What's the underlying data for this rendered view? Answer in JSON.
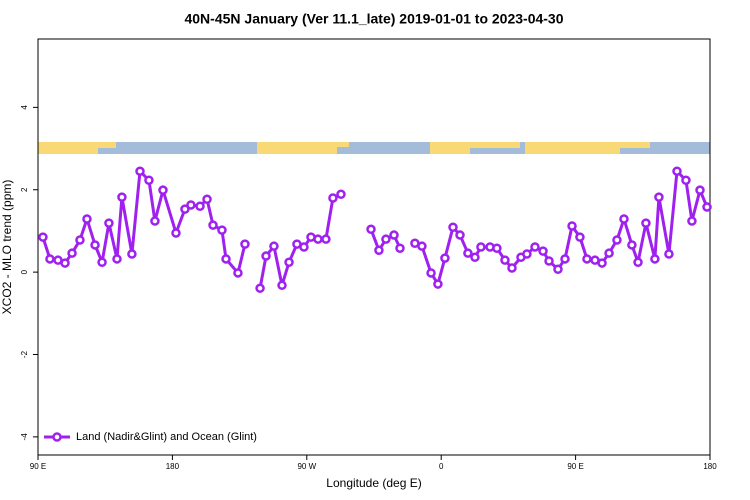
{
  "chart_data": {
    "type": "line",
    "title": "40N-45N January (Ver 11.1_late)   2019-01-01 to 2023-04-30",
    "x_label": "Longitude (deg E)",
    "y_label": "XCO2 - MLO trend (ppm)",
    "x": [
      93.3,
      98,
      103.4,
      108.1,
      112.8,
      118.1,
      122.8,
      128.2,
      132.9,
      137.5,
      142.9,
      146.2,
      152.9,
      158.3,
      164.3,
      168.3,
      173.7,
      182.4,
      188.4,
      192.4,
      198.5,
      203.2,
      207.2,
      213.2,
      215.9,
      223.9,
      228.6,
      233.5,
      238.7,
      242.7,
      248,
      253.4,
      258.1,
      263.4,
      268.1,
      272.8,
      277.5,
      282.8,
      287.5,
      292.9,
      303,
      313,
      318.3,
      323,
      328.4,
      332.4,
      337.5,
      342.4,
      347.1,
      353.2,
      357.8,
      362.5,
      367.9,
      372.6,
      377.9,
      382.6,
      386.6,
      392.7,
      397.3,
      402.7,
      407.4,
      413.4,
      417.4,
      422.8,
      428.2,
      432.2,
      438.2,
      442.9,
      447.6,
      452.9,
      457.6,
      463,
      467.7,
      472.4,
      477.7,
      482.4,
      487.7,
      491.8,
      497.1,
      503.1,
      505.8,
      512.5,
      517.9,
      523.9,
      527.9,
      533.3,
      538
    ],
    "series": [
      {
        "name": "Land (Nadir&Glint) and Ocean (Glint)",
        "color": "#a020f0",
        "values": [
          0.85,
          0.32,
          0.29,
          0.22,
          0.46,
          0.78,
          1.29,
          0.66,
          0.24,
          1.19,
          0.32,
          1.82,
          0.44,
          2.45,
          2.23,
          1.24,
          1.99,
          0.95,
          1.53,
          1.63,
          1.6,
          1.77,
          1.14,
          1.02,
          0.32,
          -0.02,
          0.68,
          null,
          -0.39,
          0.39,
          0.63,
          -0.32,
          0.24,
          0.68,
          0.61,
          0.85,
          0.8,
          0.8,
          1.8,
          1.89,
          null,
          1.04,
          0.53,
          0.8,
          0.9,
          0.58,
          null,
          0.7,
          0.63,
          -0.02,
          -0.29,
          0.34,
          1.09,
          0.9,
          0.46,
          0.36,
          0.61,
          0.61,
          0.58,
          0.29,
          0.1,
          0.36,
          0.44,
          0.61,
          0.51,
          0.27,
          0.07,
          0.32,
          1.12,
          0.85,
          0.32,
          0.29,
          0.22,
          0.46,
          0.78,
          1.29,
          0.66,
          0.24,
          1.19,
          0.32,
          1.82,
          0.44,
          2.45,
          2.23,
          1.24,
          1.99,
          1.58
        ]
      }
    ],
    "xlim": [
      90,
      540
    ],
    "xticks": [
      {
        "value": 90,
        "label": "90 E"
      },
      {
        "value": 180,
        "label": "180"
      },
      {
        "value": 270,
        "label": "90 W"
      },
      {
        "value": 360,
        "label": "0"
      },
      {
        "value": 450,
        "label": "90 E"
      },
      {
        "value": 540,
        "label": "180"
      }
    ],
    "ylim": [
      -4.44,
      5.66
    ],
    "yticks": [
      -4,
      -2,
      0,
      2,
      4
    ],
    "legend": "bottom-left"
  }
}
